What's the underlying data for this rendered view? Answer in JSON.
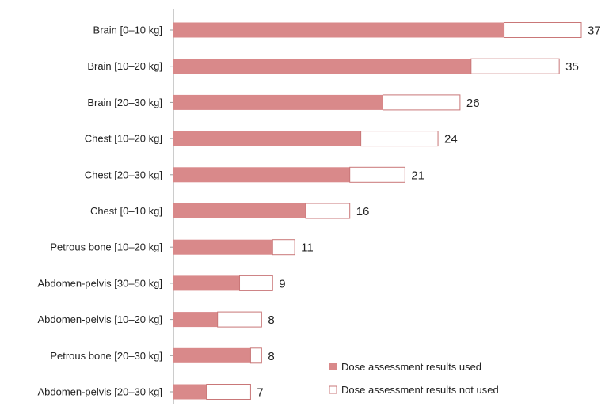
{
  "chart_data": {
    "type": "bar",
    "orientation": "horizontal",
    "stacked": true,
    "categories": [
      "Brain [0–10 kg]",
      "Brain [10–20 kg]",
      "Brain [20–30 kg]",
      "Chest [10–20 kg]",
      "Chest [20–30 kg]",
      "Chest [0–10 kg]",
      "Petrous bone [10–20 kg]",
      "Abdomen-pelvis [30–50 kg]",
      "Abdomen-pelvis [10–20 kg]",
      "Petrous bone [20–30 kg]",
      "Abdomen-pelvis [20–30 kg]"
    ],
    "totals": [
      37,
      35,
      26,
      24,
      21,
      16,
      11,
      9,
      8,
      8,
      7
    ],
    "series": [
      {
        "name": "Dose assessment results used",
        "values": [
          30,
          27,
          19,
          17,
          16,
          12,
          9,
          6,
          4,
          7,
          3
        ]
      },
      {
        "name": "Dose assessment results not used",
        "values": [
          7,
          8,
          7,
          7,
          5,
          4,
          2,
          3,
          4,
          1,
          4
        ]
      }
    ],
    "title": "",
    "xlabel": "",
    "ylabel": "",
    "xlim": [
      0,
      37
    ],
    "grid": false,
    "legend_position": "bottom-right",
    "colors": {
      "used": "#d9898a",
      "not_used": "#ffffff",
      "bar_outline": "#c97778",
      "axis": "#999999"
    }
  }
}
